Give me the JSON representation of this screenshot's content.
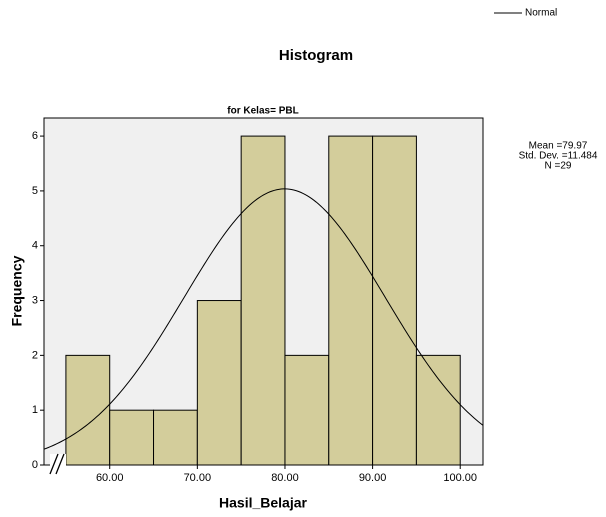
{
  "chart_data": {
    "type": "histogram",
    "title": "Histogram",
    "subtitle": "for Kelas= PBL",
    "x_label": "Hasil_Belajar",
    "y_label": "Frequency",
    "bins": [
      55,
      60,
      65,
      70,
      75,
      80,
      85,
      90,
      95,
      100
    ],
    "values": [
      2,
      1,
      1,
      3,
      6,
      2,
      6,
      6,
      2
    ],
    "color": "#d3cd9b",
    "xlim": [
      52.5,
      102.6
    ],
    "xticks": [
      {
        "value": 60,
        "label": "60.00"
      },
      {
        "value": 70,
        "label": "70.00"
      },
      {
        "value": 80,
        "label": "80.00"
      },
      {
        "value": 90,
        "label": "90.00"
      },
      {
        "value": 100,
        "label": "100.00"
      }
    ],
    "ylim": [
      0,
      6.33
    ],
    "yticks": [
      0,
      1,
      2,
      3,
      4,
      5,
      6
    ],
    "normal": {
      "name": "Normal",
      "mean": 79.97,
      "std_dev": 11.484,
      "n": 29
    },
    "stats_labels": [
      "Mean =79.97",
      "Std. Dev. =11.484",
      "N =29"
    ]
  }
}
